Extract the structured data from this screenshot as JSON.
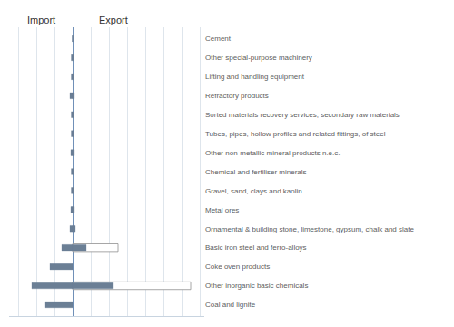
{
  "chart_data": {
    "type": "bar",
    "orientation": "horizontal",
    "categories": [
      "Coal and lignite",
      "Other inorganic basic chemicals",
      "Coke oven products",
      "Basic iron steel and ferro-alloys",
      "Ornamental & building stone, limestone, gypsum, chalk and slate",
      "Metal ores",
      "Gravel, sand, clays and kaolin",
      "Chemical and fertiliser minerals",
      "Other non-metallic mineral products n.e.c.",
      "Tubes, pipes, hollow profiles and related fittings, of steel",
      "Sorted materials recovery services; secondary raw materials",
      "Refractory products",
      "Lifting and handling equipment",
      "Other special-purpose machinery",
      "Cement"
    ],
    "series": [
      {
        "color": "#909090",
        "marker": "outline",
        "values": [
          0.0,
          13.0,
          0.0,
          5.0,
          0.0,
          0.0,
          0.0,
          0.0,
          0.0,
          0.0,
          0.0,
          0.0,
          0.0,
          0.0,
          0.0
        ]
      },
      {
        "color": "#6b7f95",
        "values": [
          -3.0,
          -4.5,
          -2.5,
          -1.2,
          -0.3,
          -0.2,
          -0.15,
          -0.15,
          -0.2,
          -0.15,
          -0.15,
          -0.3,
          -0.15,
          -0.15,
          -0.05
        ]
      },
      {
        "color": "#6b7f95",
        "values": [
          0.0,
          4.5,
          0.0,
          1.5,
          0.3,
          0.2,
          0.15,
          0.1,
          0.2,
          0.1,
          0.1,
          0.2,
          0.15,
          0.1,
          0.05
        ]
      }
    ],
    "annotations": [
      {
        "text": "Import",
        "x": -3.5
      },
      {
        "text": "Export",
        "x": 4.5
      }
    ],
    "xlim": [
      -7.0,
      14.5
    ],
    "xticks": [
      -6,
      -4,
      -2,
      2,
      4,
      6,
      8,
      10,
      12,
      14
    ],
    "grid": true,
    "tick_labels": "y"
  }
}
